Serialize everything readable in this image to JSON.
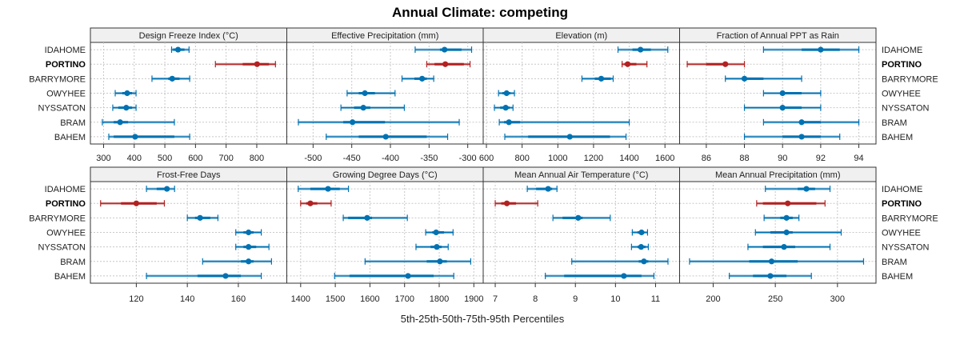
{
  "chart_data": {
    "type": "dotplot-percentile-intervals",
    "title": "Annual Climate: competing",
    "xlabel": "5th-25th-50th-75th-95th Percentiles",
    "highlight": "PORTINO",
    "colors": {
      "default": "#0072b2",
      "highlight": "#b22222"
    },
    "grid": true,
    "categories": [
      "IDAHOME",
      "PORTINO",
      "BARRYMORE",
      "OWYHEE",
      "NYSSATON",
      "BRAM",
      "BAHEM"
    ],
    "panels": [
      {
        "title": "Design Freeze Index (°C)",
        "xlim": [
          257,
          898
        ],
        "ticks": [
          300,
          400,
          500,
          600,
          700,
          800
        ],
        "tick_labels": [
          "300",
          "400",
          "500",
          "600",
          "700",
          "800"
        ],
        "values": [
          [
            522,
            527,
            543,
            564,
            579
          ],
          [
            665,
            754,
            801,
            840,
            861
          ],
          [
            458,
            511,
            524,
            548,
            581
          ],
          [
            338,
            361,
            377,
            393,
            406
          ],
          [
            330,
            348,
            374,
            393,
            406
          ],
          [
            296,
            333,
            354,
            380,
            531
          ],
          [
            317,
            333,
            403,
            531,
            581
          ]
        ]
      },
      {
        "title": "Effective Precipitation (mm)",
        "xlim": [
          -534,
          -280
        ],
        "ticks": [
          -500,
          -450,
          -400,
          -350,
          -300
        ],
        "tick_labels": [
          "-500",
          "-450",
          "-400",
          "-350",
          "-300"
        ],
        "values": [
          [
            -368,
            -336,
            -330,
            -308,
            -295
          ],
          [
            -353,
            -343,
            -329,
            -305,
            -297
          ],
          [
            -385,
            -369,
            -359,
            -353,
            -344
          ],
          [
            -456,
            -441,
            -433,
            -420,
            -394
          ],
          [
            -464,
            -447,
            -435,
            -426,
            -382
          ],
          [
            -519,
            -461,
            -449,
            -407,
            -311
          ],
          [
            -483,
            -441,
            -406,
            -353,
            -326
          ]
        ]
      },
      {
        "title": "Elevation (m)",
        "xlim": [
          582,
          1682
        ],
        "ticks": [
          600,
          800,
          1000,
          1200,
          1400,
          1600
        ],
        "tick_labels": [
          "600",
          "800",
          "1000",
          "1200",
          "1400",
          "1600"
        ],
        "values": [
          [
            1337,
            1418,
            1463,
            1521,
            1616
          ],
          [
            1360,
            1373,
            1391,
            1440,
            1499
          ],
          [
            1135,
            1207,
            1243,
            1297,
            1310
          ],
          [
            668,
            690,
            713,
            735,
            757
          ],
          [
            645,
            677,
            708,
            730,
            749
          ],
          [
            672,
            699,
            726,
            789,
            1400
          ],
          [
            703,
            834,
            1067,
            1292,
            1382
          ]
        ]
      },
      {
        "title": "Fraction of Annual PPT as Rain",
        "xlim": [
          84.6,
          94.9
        ],
        "ticks": [
          86,
          88,
          90,
          92,
          94
        ],
        "tick_labels": [
          "86",
          "88",
          "90",
          "92",
          "94"
        ],
        "values": [
          [
            89,
            91,
            92,
            93,
            94
          ],
          [
            85,
            86,
            87,
            87,
            88
          ],
          [
            87,
            88,
            88,
            89,
            91
          ],
          [
            89,
            90,
            90,
            91,
            92
          ],
          [
            88,
            90,
            90,
            91,
            92
          ],
          [
            89,
            91,
            91,
            92,
            94
          ],
          [
            88,
            90,
            91,
            92,
            93
          ]
        ]
      },
      {
        "title": "Frost-Free Days",
        "xlim": [
          102,
          179
        ],
        "ticks": [
          120,
          140,
          160
        ],
        "tick_labels": [
          "120",
          "140",
          "160"
        ],
        "values": [
          [
            124,
            128,
            132,
            133,
            135
          ],
          [
            106,
            114,
            120,
            128,
            131
          ],
          [
            140,
            143,
            145,
            149,
            152
          ],
          [
            159,
            162,
            164,
            166,
            169
          ],
          [
            159,
            162,
            164,
            167,
            172
          ],
          [
            146,
            161,
            164,
            166,
            173
          ],
          [
            124,
            144,
            155,
            161,
            169
          ]
        ]
      },
      {
        "title": "Growing Degree Days (°C)",
        "xlim": [
          1360,
          1927
        ],
        "ticks": [
          1400,
          1500,
          1600,
          1700,
          1800,
          1900
        ],
        "tick_labels": [
          "1400",
          "1500",
          "1600",
          "1700",
          "1800",
          "1900"
        ],
        "values": [
          [
            1393,
            1428,
            1479,
            1513,
            1538
          ],
          [
            1400,
            1416,
            1428,
            1448,
            1488
          ],
          [
            1523,
            1537,
            1592,
            1606,
            1708
          ],
          [
            1761,
            1780,
            1791,
            1814,
            1840
          ],
          [
            1733,
            1775,
            1793,
            1807,
            1826
          ],
          [
            1586,
            1764,
            1802,
            1822,
            1891
          ],
          [
            1498,
            1541,
            1710,
            1784,
            1842
          ]
        ]
      },
      {
        "title": "Mean Annual Air Temperature (°C)",
        "xlim": [
          6.7,
          11.6
        ],
        "ticks": [
          7,
          8,
          9,
          10,
          11
        ],
        "tick_labels": [
          "7",
          "8",
          "9",
          "10",
          "11"
        ],
        "values": [
          [
            7.8,
            8.02,
            8.32,
            8.42,
            8.54
          ],
          [
            7.0,
            7.15,
            7.29,
            7.52,
            8.06
          ],
          [
            8.44,
            8.68,
            9.07,
            9.18,
            9.87
          ],
          [
            10.42,
            10.55,
            10.65,
            10.72,
            10.8
          ],
          [
            10.4,
            10.55,
            10.64,
            10.75,
            10.82
          ],
          [
            8.91,
            10.58,
            10.71,
            10.82,
            11.31
          ],
          [
            8.25,
            8.72,
            10.21,
            10.65,
            10.96
          ]
        ]
      },
      {
        "title": "Mean Annual Precipitation (mm)",
        "xlim": [
          173,
          331
        ],
        "ticks": [
          200,
          250,
          300
        ],
        "tick_labels": [
          "200",
          "250",
          "300"
        ],
        "values": [
          [
            242,
            268,
            275,
            282,
            294
          ],
          [
            235,
            240,
            260,
            283,
            290
          ],
          [
            241,
            254,
            259,
            264,
            269
          ],
          [
            234,
            246,
            259,
            264,
            303
          ],
          [
            228,
            240,
            257,
            266,
            294
          ],
          [
            181,
            229,
            247,
            268,
            321
          ],
          [
            213,
            232,
            246,
            259,
            279
          ]
        ]
      }
    ]
  }
}
